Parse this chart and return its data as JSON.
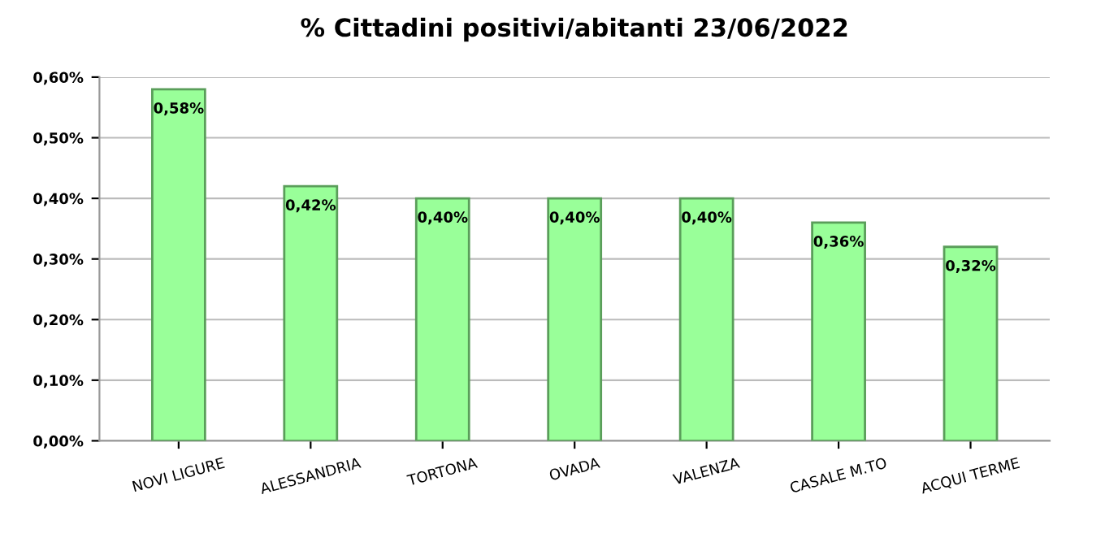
{
  "chart_data": {
    "type": "bar",
    "title": "% Cittadini positivi/abitanti 23/06/2022",
    "categories": [
      "NOVI LIGURE",
      "ALESSANDRIA",
      "TORTONA",
      "OVADA",
      "VALENZA",
      "CASALE M.TO",
      "ACQUI TERME"
    ],
    "values": [
      0.58,
      0.42,
      0.4,
      0.4,
      0.4,
      0.36,
      0.32
    ],
    "value_labels": [
      "0,58%",
      "0,42%",
      "0,40%",
      "0,40%",
      "0,40%",
      "0,36%",
      "0,32%"
    ],
    "color": "#99ff99",
    "ylim": [
      0,
      0.6
    ],
    "yticks": [
      {
        "value": 0,
        "label": "0,00%"
      },
      {
        "value": 0.1,
        "label": "0,10%"
      },
      {
        "value": 0.2,
        "label": "0,20%"
      },
      {
        "value": 0.3,
        "label": "0,30%"
      },
      {
        "value": 0.4,
        "label": "0,40%"
      },
      {
        "value": 0.5,
        "label": "0,50%"
      },
      {
        "value": 0.6,
        "label": "0,60%"
      }
    ],
    "grid": "y",
    "legend": false
  }
}
